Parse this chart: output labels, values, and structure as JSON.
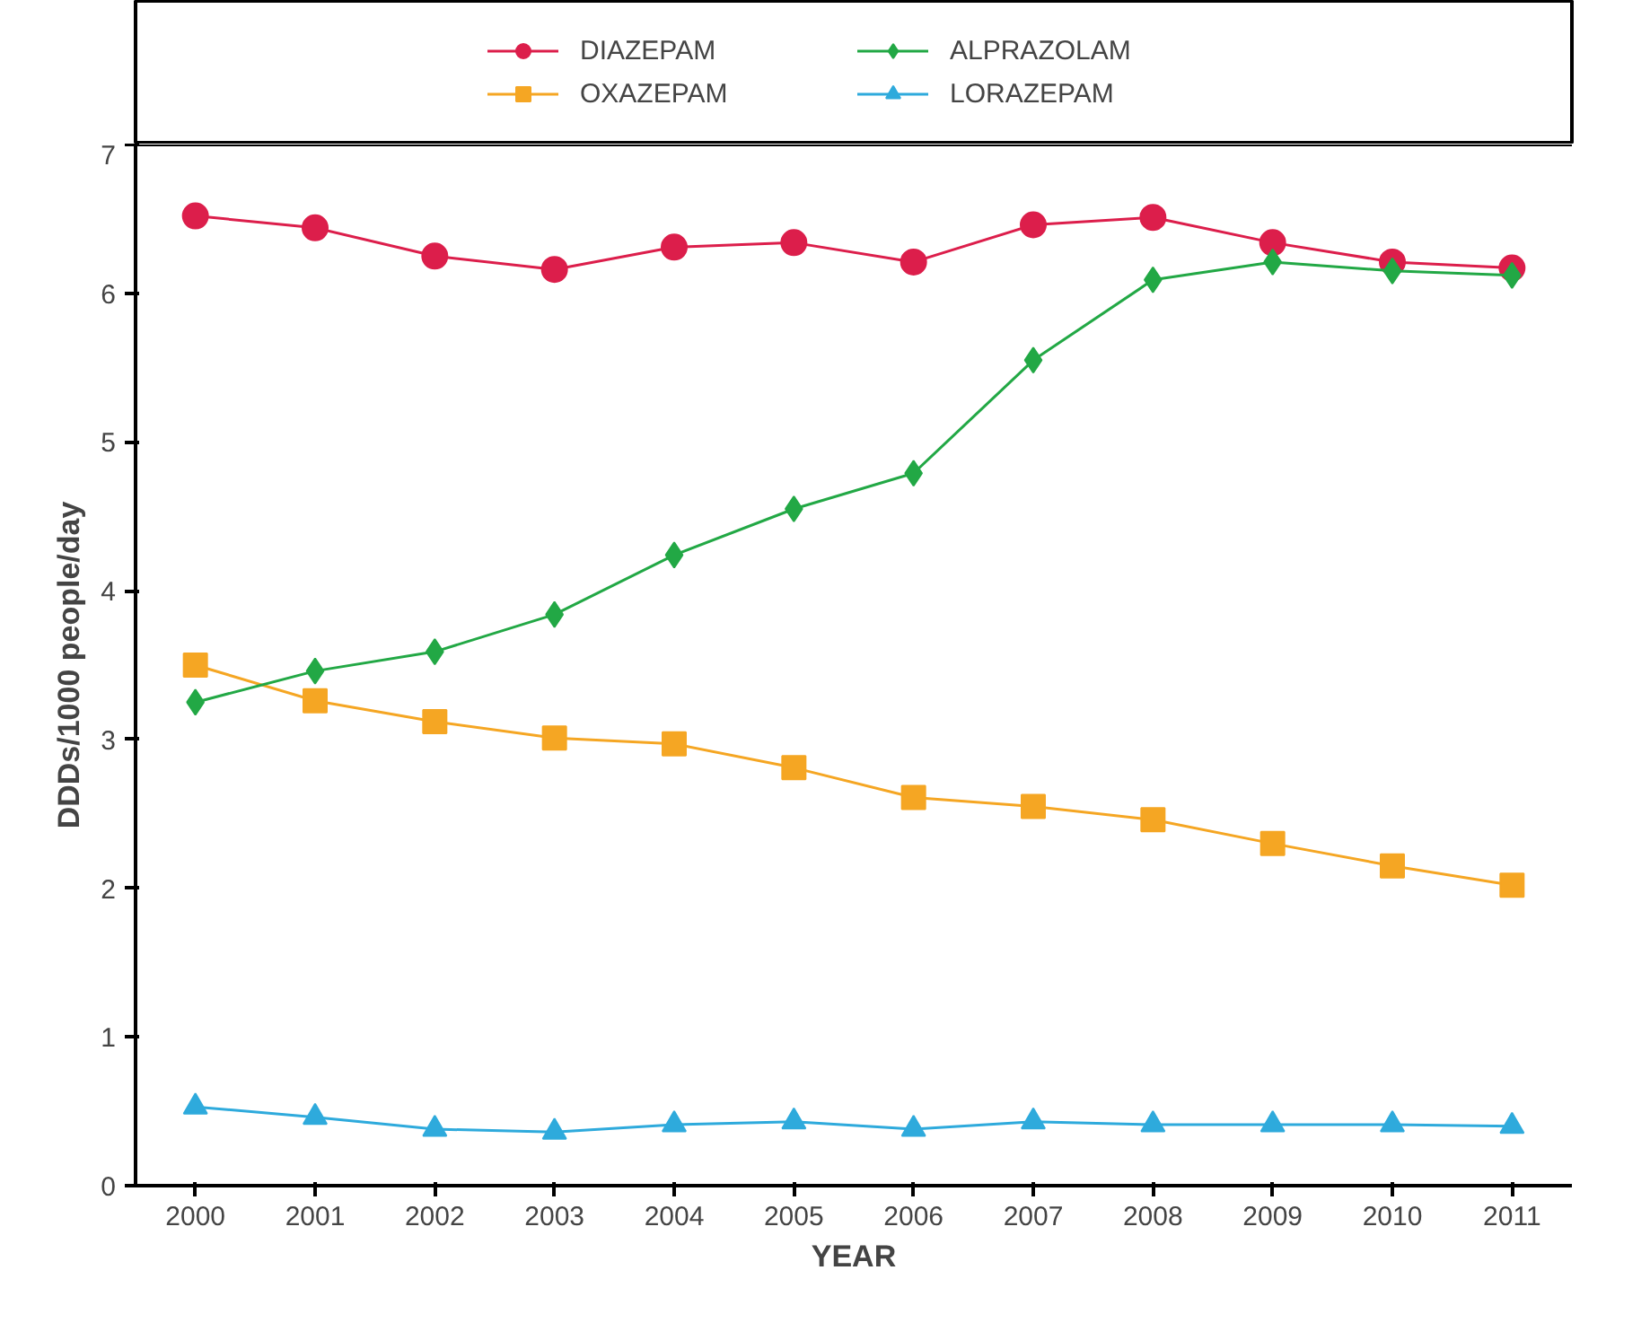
{
  "chart_data": {
    "type": "line",
    "xlabel": "YEAR",
    "ylabel": "DDDs/1000 people/day",
    "x": [
      2000,
      2001,
      2002,
      2003,
      2004,
      2005,
      2006,
      2007,
      2008,
      2009,
      2010,
      2011
    ],
    "xlim": [
      1999.5,
      2011.5
    ],
    "xticks": [
      2000,
      2001,
      2002,
      2003,
      2004,
      2005,
      2006,
      2007,
      2008,
      2009,
      2010,
      2011
    ],
    "ylim": [
      0,
      7
    ],
    "yticks": [
      0,
      1,
      2,
      3,
      4,
      5,
      6,
      7
    ],
    "grid": false,
    "legend": "top",
    "line_style": "solid",
    "series": [
      {
        "name": "DIAZEPAM",
        "color": "#dc1e4b",
        "marker": "circle",
        "values": [
          6.52,
          6.44,
          6.25,
          6.16,
          6.31,
          6.34,
          6.21,
          6.46,
          6.51,
          6.34,
          6.21,
          6.17
        ]
      },
      {
        "name": "OXAZEPAM",
        "color": "#f5a623",
        "marker": "square",
        "values": [
          3.5,
          3.26,
          3.12,
          3.01,
          2.97,
          2.81,
          2.61,
          2.55,
          2.46,
          2.3,
          2.15,
          2.02
        ]
      },
      {
        "name": "ALPRAZOLAM",
        "color": "#22a845",
        "marker": "diamond",
        "values": [
          3.25,
          3.46,
          3.59,
          3.84,
          4.24,
          4.55,
          4.79,
          5.55,
          6.09,
          6.21,
          6.15,
          6.12
        ]
      },
      {
        "name": "LORAZEPAM",
        "color": "#2eaadc",
        "marker": "triangle",
        "values": [
          0.53,
          0.46,
          0.38,
          0.36,
          0.41,
          0.43,
          0.38,
          0.43,
          0.41,
          0.41,
          0.41,
          0.4
        ]
      }
    ]
  }
}
